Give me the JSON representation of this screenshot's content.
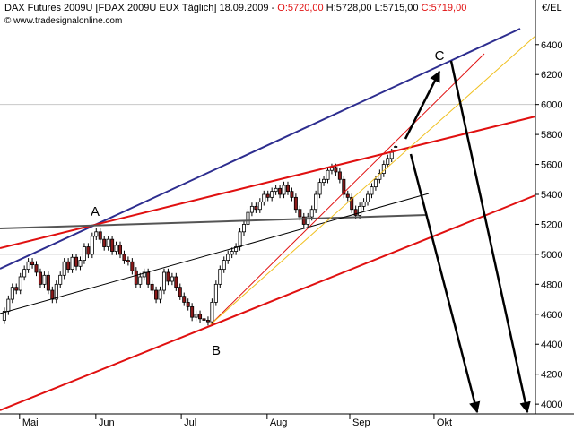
{
  "header": {
    "instrument": "DAX Futures 2009U [FDAX 2009U EUX  Täglich] 18.09.2009 -",
    "open": "O:5720,00",
    "high": "H:5728,00",
    "low": "L:5715,00",
    "close": "C:5719,00",
    "copyright": "© www.tradesignalonline.com"
  },
  "chart_data": {
    "type": "candlestick",
    "unit_label": "€/EL",
    "up_color": "#ffffff",
    "down_color": "#8b1a1a",
    "xlim": [
      -1.1,
      133
    ],
    "ylim": [
      3935,
      6590
    ],
    "xticks": [
      {
        "value": 3.8,
        "label": "Mai"
      },
      {
        "value": 22.9,
        "label": "Jun"
      },
      {
        "value": 44.3,
        "label": "Jul"
      },
      {
        "value": 65.8,
        "label": "Aug"
      },
      {
        "value": 86.5,
        "label": "Sep"
      },
      {
        "value": 107.6,
        "label": "Okt"
      }
    ],
    "yticks": [
      4000,
      4200,
      4400,
      4600,
      4800,
      5000,
      5200,
      5400,
      5600,
      5800,
      6000,
      6200,
      6400
    ],
    "ygrid": [
      5000,
      6000
    ],
    "annotations": [
      "A",
      "B",
      "C"
    ],
    "x": [
      0,
      1,
      2,
      3,
      4,
      5,
      6,
      7,
      8,
      9,
      10,
      11,
      12,
      13,
      14,
      15,
      16,
      17,
      18,
      19,
      20,
      21,
      22,
      23,
      24,
      25,
      26,
      27,
      28,
      29,
      30,
      31,
      32,
      33,
      34,
      35,
      36,
      37,
      38,
      39,
      40,
      41,
      42,
      43,
      44,
      45,
      46,
      47,
      48,
      49,
      50,
      51,
      52,
      53,
      54,
      55,
      56,
      57,
      58,
      59,
      60,
      61,
      62,
      63,
      64,
      65,
      66,
      67,
      68,
      69,
      70,
      71,
      72,
      73,
      74,
      75,
      76,
      77,
      78,
      79,
      80,
      81,
      82,
      83,
      84,
      85,
      86,
      87,
      88,
      89,
      90,
      91,
      92,
      93,
      94,
      95,
      96,
      97,
      98
    ],
    "open": [
      4560,
      4620,
      4700,
      4780,
      4760,
      4850,
      4900,
      4950,
      4930,
      4880,
      4800,
      4860,
      4760,
      4700,
      4800,
      4860,
      4950,
      4900,
      4980,
      4920,
      4960,
      5050,
      5000,
      5120,
      5150,
      5100,
      5050,
      5100,
      5020,
      5060,
      5000,
      4960,
      4950,
      4890,
      4800,
      4850,
      4880,
      4800,
      4760,
      4700,
      4760,
      4880,
      4820,
      4850,
      4780,
      4720,
      4680,
      4650,
      4580,
      4600,
      4570,
      4560,
      4550,
      4680,
      4800,
      4900,
      4960,
      5000,
      5020,
      5050,
      5150,
      5200,
      5280,
      5320,
      5300,
      5350,
      5400,
      5380,
      5420,
      5440,
      5400,
      5460,
      5420,
      5380,
      5300,
      5250,
      5200,
      5250,
      5300,
      5400,
      5480,
      5500,
      5560,
      5580,
      5550,
      5500,
      5400,
      5380,
      5300,
      5260,
      5320,
      5350,
      5400,
      5450,
      5500,
      5540,
      5600,
      5640,
      5720
    ],
    "high": [
      4645,
      4725,
      4805,
      4805,
      4875,
      4925,
      4975,
      4975,
      4955,
      4905,
      4885,
      4885,
      4785,
      4825,
      4885,
      4975,
      4975,
      5005,
      5005,
      4985,
      5075,
      5075,
      5145,
      5175,
      5175,
      5125,
      5125,
      5125,
      5085,
      5085,
      5025,
      4985,
      4975,
      4915,
      4875,
      4905,
      4905,
      4825,
      4785,
      4785,
      4905,
      4905,
      4875,
      4875,
      4805,
      4745,
      4705,
      4675,
      4625,
      4625,
      4595,
      4585,
      4705,
      4825,
      4925,
      4985,
      5025,
      5045,
      5075,
      5175,
      5225,
      5305,
      5345,
      5345,
      5375,
      5425,
      5425,
      5445,
      5465,
      5465,
      5485,
      5485,
      5445,
      5405,
      5325,
      5275,
      5275,
      5325,
      5425,
      5505,
      5525,
      5585,
      5605,
      5605,
      5575,
      5525,
      5425,
      5405,
      5325,
      5345,
      5375,
      5425,
      5475,
      5525,
      5565,
      5625,
      5665,
      5705,
      5728
    ],
    "low": [
      4535,
      4595,
      4675,
      4735,
      4735,
      4825,
      4875,
      4905,
      4855,
      4775,
      4775,
      4735,
      4675,
      4675,
      4775,
      4835,
      4875,
      4875,
      4895,
      4895,
      4935,
      4975,
      4975,
      5095,
      5075,
      5025,
      5025,
      4995,
      4995,
      4975,
      4935,
      4925,
      4865,
      4775,
      4775,
      4825,
      4775,
      4735,
      4675,
      4675,
      4735,
      4795,
      4795,
      4755,
      4695,
      4655,
      4625,
      4555,
      4555,
      4545,
      4535,
      4525,
      4525,
      4655,
      4775,
      4875,
      4935,
      4975,
      4995,
      5025,
      5125,
      5175,
      5255,
      5275,
      5275,
      5325,
      5355,
      5355,
      5395,
      5375,
      5375,
      5395,
      5355,
      5275,
      5225,
      5175,
      5175,
      5225,
      5275,
      5375,
      5455,
      5475,
      5535,
      5525,
      5475,
      5375,
      5355,
      5275,
      5235,
      5235,
      5295,
      5325,
      5375,
      5425,
      5475,
      5515,
      5575,
      5615,
      5715
    ],
    "close": [
      4620,
      4700,
      4780,
      4760,
      4850,
      4900,
      4950,
      4930,
      4880,
      4800,
      4860,
      4760,
      4700,
      4800,
      4860,
      4950,
      4900,
      4980,
      4920,
      4960,
      5050,
      5000,
      5120,
      5150,
      5100,
      5050,
      5100,
      5020,
      5060,
      5000,
      4960,
      4950,
      4890,
      4800,
      4850,
      4880,
      4800,
      4760,
      4700,
      4760,
      4880,
      4820,
      4850,
      4780,
      4720,
      4680,
      4650,
      4580,
      4600,
      4570,
      4560,
      4550,
      4680,
      4800,
      4900,
      4960,
      5000,
      5020,
      5050,
      5150,
      5200,
      5280,
      5320,
      5300,
      5350,
      5400,
      5380,
      5420,
      5440,
      5400,
      5460,
      5420,
      5380,
      5300,
      5250,
      5200,
      5250,
      5300,
      5400,
      5480,
      5500,
      5560,
      5580,
      5550,
      5500,
      5400,
      5380,
      5300,
      5260,
      5320,
      5350,
      5400,
      5450,
      5500,
      5540,
      5600,
      5640,
      5680,
      5719
    ]
  }
}
